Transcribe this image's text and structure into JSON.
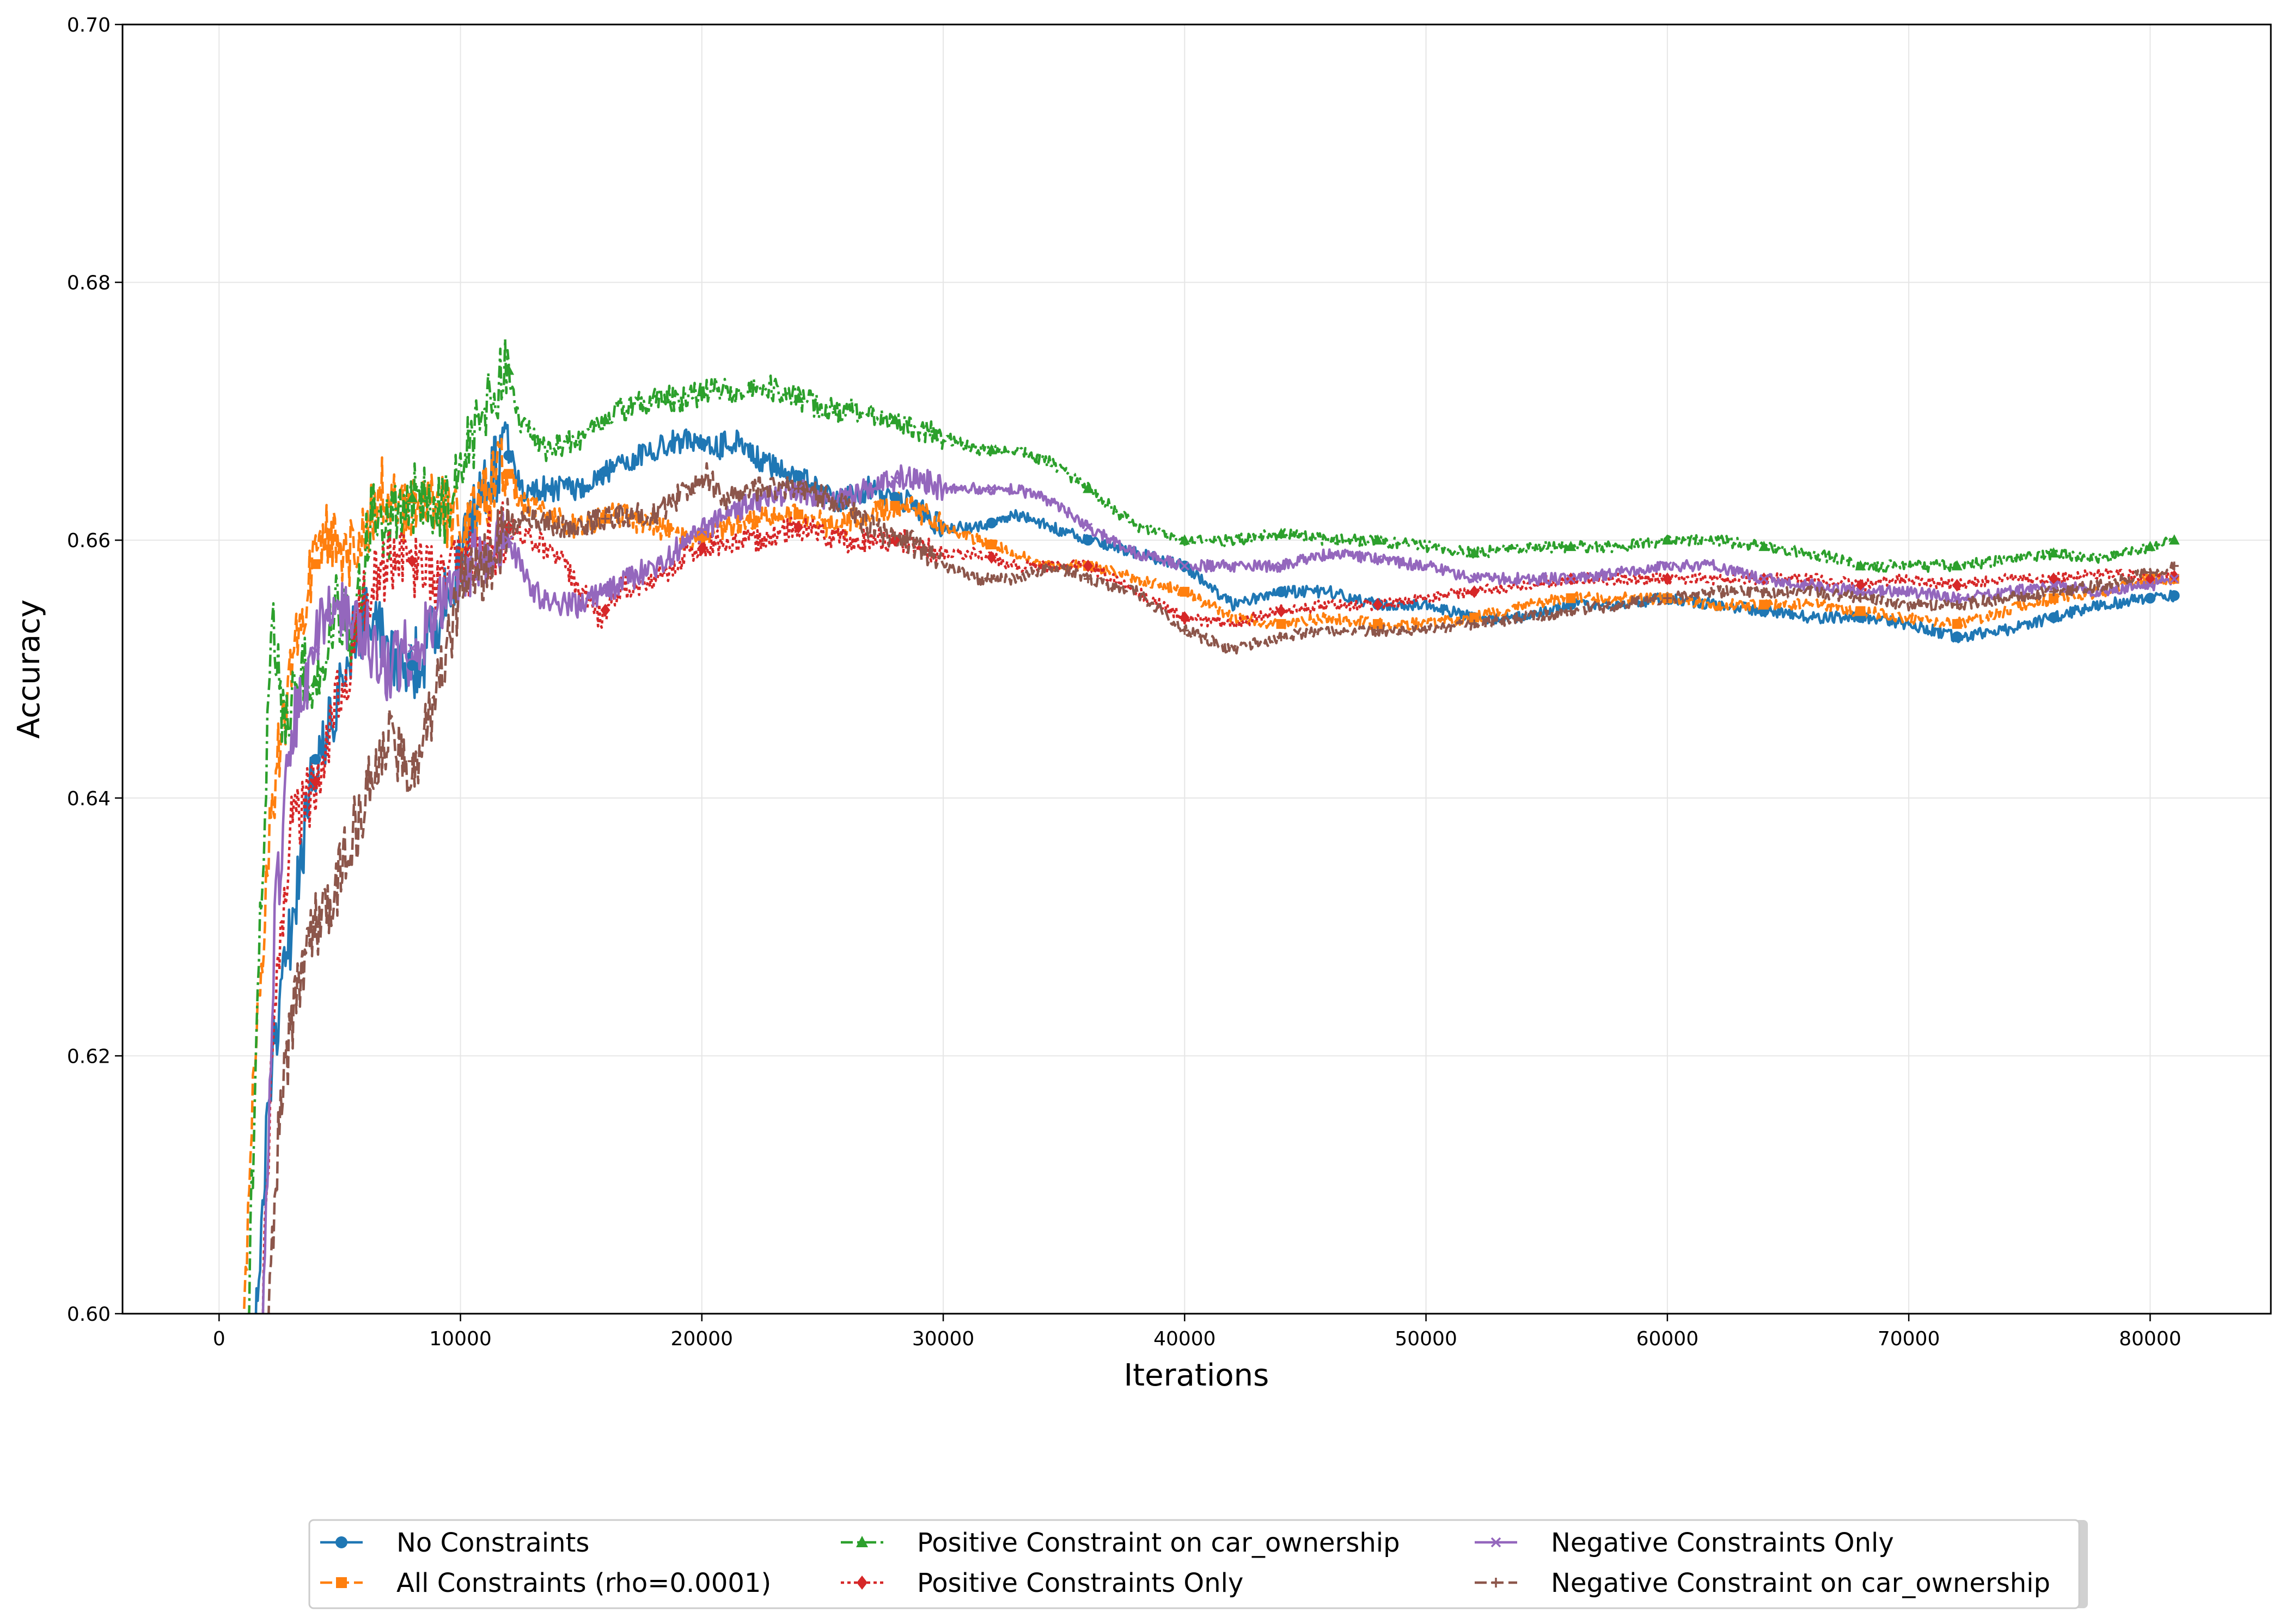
{
  "chart_data": {
    "type": "line",
    "title": "",
    "xlabel": "Iterations",
    "ylabel": "Accuracy",
    "xlim": [
      -4000,
      85000
    ],
    "ylim": [
      0.6,
      0.7
    ],
    "xticks": [
      0,
      10000,
      20000,
      30000,
      40000,
      50000,
      60000,
      70000,
      80000
    ],
    "xtick_labels": [
      "0",
      "10000",
      "20000",
      "30000",
      "40000",
      "50000",
      "60000",
      "70000",
      "80000"
    ],
    "yticks": [
      0.6,
      0.62,
      0.64,
      0.66,
      0.68,
      0.7
    ],
    "ytick_labels": [
      "0.60",
      "0.62",
      "0.64",
      "0.66",
      "0.68",
      "0.70"
    ],
    "grid": true,
    "legend_position": "bottom-center",
    "series": [
      {
        "name": "No Constraints",
        "color": "#1f77b4",
        "dash": "solid",
        "marker": "circle",
        "x": [
          1500,
          2200,
          3000,
          4000,
          4800,
          5500,
          6300,
          7000,
          7800,
          8500,
          9300,
          10200,
          11000,
          11900,
          12600,
          13500,
          15000,
          16500,
          18000,
          19500,
          20500,
          21500,
          22500,
          24000,
          25500,
          27000,
          28500,
          30000,
          31500,
          33000,
          34500,
          36000,
          38000,
          40000,
          42000,
          44000,
          46000,
          48000,
          50000,
          52000,
          54000,
          56000,
          58000,
          60000,
          62000,
          64000,
          66000,
          68000,
          70000,
          72000,
          74000,
          76000,
          78000,
          80000,
          81000
        ],
        "y": [
          0.6,
          0.62,
          0.63,
          0.643,
          0.646,
          0.652,
          0.655,
          0.652,
          0.65,
          0.651,
          0.655,
          0.66,
          0.664,
          0.667,
          0.664,
          0.664,
          0.664,
          0.666,
          0.667,
          0.668,
          0.667,
          0.668,
          0.666,
          0.665,
          0.663,
          0.664,
          0.663,
          0.661,
          0.661,
          0.662,
          0.661,
          0.66,
          0.659,
          0.658,
          0.655,
          0.656,
          0.656,
          0.655,
          0.655,
          0.654,
          0.654,
          0.655,
          0.655,
          0.6555,
          0.655,
          0.6545,
          0.654,
          0.654,
          0.6535,
          0.6525,
          0.653,
          0.654,
          0.655,
          0.6555,
          0.6557
        ]
      },
      {
        "name": "All Constraints (rho=0.0001)",
        "color": "#ff7f0e",
        "dash": "dashed",
        "marker": "square",
        "x": [
          1000,
          1500,
          2200,
          3000,
          3800,
          4500,
          5200,
          6000,
          6700,
          7500,
          8300,
          9000,
          10000,
          11000,
          11800,
          12500,
          13500,
          15000,
          16500,
          18000,
          19500,
          21000,
          22500,
          24000,
          25500,
          27000,
          28500,
          30000,
          31500,
          33000,
          34500,
          36000,
          38000,
          40000,
          42000,
          44000,
          46000,
          48000,
          50000,
          52000,
          54000,
          56000,
          58000,
          60000,
          62000,
          64000,
          66000,
          68000,
          70000,
          72000,
          74000,
          76000,
          78000,
          80000,
          81000
        ],
        "y": [
          0.6,
          0.62,
          0.64,
          0.65,
          0.657,
          0.661,
          0.658,
          0.661,
          0.664,
          0.662,
          0.664,
          0.663,
          0.661,
          0.663,
          0.666,
          0.663,
          0.662,
          0.661,
          0.662,
          0.661,
          0.66,
          0.661,
          0.662,
          0.662,
          0.661,
          0.662,
          0.663,
          0.661,
          0.66,
          0.659,
          0.658,
          0.658,
          0.657,
          0.656,
          0.654,
          0.6535,
          0.654,
          0.6535,
          0.6535,
          0.654,
          0.655,
          0.6555,
          0.6555,
          0.6555,
          0.655,
          0.655,
          0.655,
          0.6545,
          0.654,
          0.6535,
          0.6545,
          0.6555,
          0.656,
          0.657,
          0.657
        ]
      },
      {
        "name": "Positive Constraint on car_ownership",
        "color": "#2ca02c",
        "dash": "dashdot",
        "marker": "triangle",
        "x": [
          1200,
          1700,
          2200,
          2700,
          3300,
          4000,
          4800,
          5500,
          6300,
          7000,
          7800,
          8500,
          9300,
          10000,
          10800,
          11500,
          11900,
          12500,
          13500,
          15000,
          16500,
          18000,
          19500,
          20500,
          21500,
          22500,
          24000,
          25500,
          27000,
          28500,
          30000,
          31500,
          33000,
          34500,
          36000,
          38000,
          40000,
          42000,
          44000,
          46000,
          48000,
          50000,
          52000,
          54000,
          56000,
          58000,
          60000,
          62000,
          64000,
          66000,
          68000,
          70000,
          72000,
          74000,
          76000,
          78000,
          80000,
          81000
        ],
        "y": [
          0.6,
          0.63,
          0.655,
          0.645,
          0.65,
          0.649,
          0.655,
          0.653,
          0.662,
          0.661,
          0.663,
          0.664,
          0.662,
          0.666,
          0.669,
          0.672,
          0.674,
          0.669,
          0.667,
          0.668,
          0.67,
          0.671,
          0.671,
          0.672,
          0.671,
          0.672,
          0.671,
          0.67,
          0.67,
          0.669,
          0.668,
          0.667,
          0.667,
          0.666,
          0.664,
          0.661,
          0.66,
          0.66,
          0.6605,
          0.66,
          0.66,
          0.6595,
          0.659,
          0.6595,
          0.6595,
          0.6595,
          0.66,
          0.66,
          0.6595,
          0.659,
          0.658,
          0.658,
          0.658,
          0.6585,
          0.659,
          0.6585,
          0.6595,
          0.66
        ]
      },
      {
        "name": "Positive Constraints Only",
        "color": "#d62728",
        "dash": "dotted",
        "marker": "diamond",
        "x": [
          1800,
          2300,
          3000,
          3800,
          4600,
          5300,
          6000,
          6800,
          7500,
          8300,
          9000,
          10000,
          11000,
          12000,
          13000,
          14000,
          15000,
          15800,
          16500,
          18000,
          19500,
          21000,
          22500,
          24000,
          25500,
          27000,
          28500,
          30000,
          31500,
          33000,
          34500,
          36000,
          38000,
          40000,
          42000,
          44000,
          46000,
          48000,
          50000,
          52000,
          54000,
          56000,
          58000,
          60000,
          62000,
          64000,
          66000,
          68000,
          70000,
          72000,
          74000,
          76000,
          78000,
          80000,
          81000
        ],
        "y": [
          0.6,
          0.625,
          0.638,
          0.64,
          0.645,
          0.65,
          0.655,
          0.658,
          0.659,
          0.658,
          0.657,
          0.658,
          0.659,
          0.661,
          0.66,
          0.659,
          0.656,
          0.654,
          0.656,
          0.657,
          0.659,
          0.66,
          0.66,
          0.661,
          0.66,
          0.66,
          0.66,
          0.659,
          0.659,
          0.658,
          0.658,
          0.658,
          0.656,
          0.654,
          0.6535,
          0.6545,
          0.655,
          0.655,
          0.6555,
          0.656,
          0.6565,
          0.657,
          0.657,
          0.657,
          0.657,
          0.657,
          0.657,
          0.6565,
          0.657,
          0.6565,
          0.657,
          0.657,
          0.6575,
          0.657,
          0.6572
        ]
      },
      {
        "name": "Negative Constraints Only",
        "color": "#9467bd",
        "dash": "solid",
        "marker": "x",
        "x": [
          1800,
          2300,
          3000,
          3800,
          4500,
          5200,
          6000,
          6800,
          7500,
          8300,
          9000,
          10000,
          11000,
          12000,
          13000,
          14000,
          15000,
          16000,
          17000,
          18000,
          19500,
          21000,
          22500,
          24000,
          25500,
          27000,
          28500,
          30000,
          31500,
          33000,
          34500,
          36000,
          38000,
          40000,
          42000,
          44000,
          46000,
          48000,
          50000,
          52000,
          54000,
          56000,
          58000,
          60000,
          62000,
          64000,
          66000,
          68000,
          70000,
          72000,
          74000,
          76000,
          78000,
          80000,
          81000
        ],
        "y": [
          0.6,
          0.63,
          0.645,
          0.65,
          0.655,
          0.654,
          0.653,
          0.65,
          0.651,
          0.652,
          0.655,
          0.657,
          0.659,
          0.66,
          0.656,
          0.655,
          0.655,
          0.656,
          0.657,
          0.658,
          0.66,
          0.662,
          0.663,
          0.664,
          0.663,
          0.664,
          0.665,
          0.664,
          0.664,
          0.664,
          0.663,
          0.661,
          0.659,
          0.658,
          0.658,
          0.658,
          0.659,
          0.6585,
          0.658,
          0.657,
          0.657,
          0.657,
          0.6575,
          0.658,
          0.658,
          0.657,
          0.6565,
          0.656,
          0.656,
          0.6555,
          0.656,
          0.6565,
          0.656,
          0.6565,
          0.657
        ]
      },
      {
        "name": "Negative Constraint on car_ownership",
        "color": "#8c564b",
        "dash": "dashed",
        "marker": "plus",
        "x": [
          2000,
          2500,
          3200,
          4000,
          4700,
          5500,
          6300,
          7000,
          7800,
          8500,
          9300,
          10000,
          11000,
          12000,
          13000,
          14000,
          15000,
          16500,
          18000,
          19500,
          20200,
          21000,
          22500,
          24000,
          25500,
          27000,
          28500,
          30000,
          31500,
          33000,
          34500,
          36000,
          38000,
          40000,
          42000,
          44000,
          46000,
          48000,
          50000,
          52000,
          54000,
          56000,
          58000,
          60000,
          62000,
          64000,
          66000,
          68000,
          70000,
          72000,
          74000,
          76000,
          78000,
          80000,
          81000
        ],
        "y": [
          0.6,
          0.615,
          0.625,
          0.63,
          0.632,
          0.637,
          0.641,
          0.645,
          0.642,
          0.645,
          0.651,
          0.656,
          0.658,
          0.661,
          0.662,
          0.661,
          0.661,
          0.662,
          0.662,
          0.664,
          0.665,
          0.663,
          0.664,
          0.664,
          0.663,
          0.661,
          0.66,
          0.658,
          0.657,
          0.657,
          0.658,
          0.657,
          0.656,
          0.653,
          0.6515,
          0.6525,
          0.653,
          0.653,
          0.653,
          0.6535,
          0.654,
          0.6545,
          0.655,
          0.6555,
          0.656,
          0.656,
          0.656,
          0.6555,
          0.655,
          0.655,
          0.6555,
          0.656,
          0.6565,
          0.6575,
          0.658
        ]
      }
    ]
  }
}
